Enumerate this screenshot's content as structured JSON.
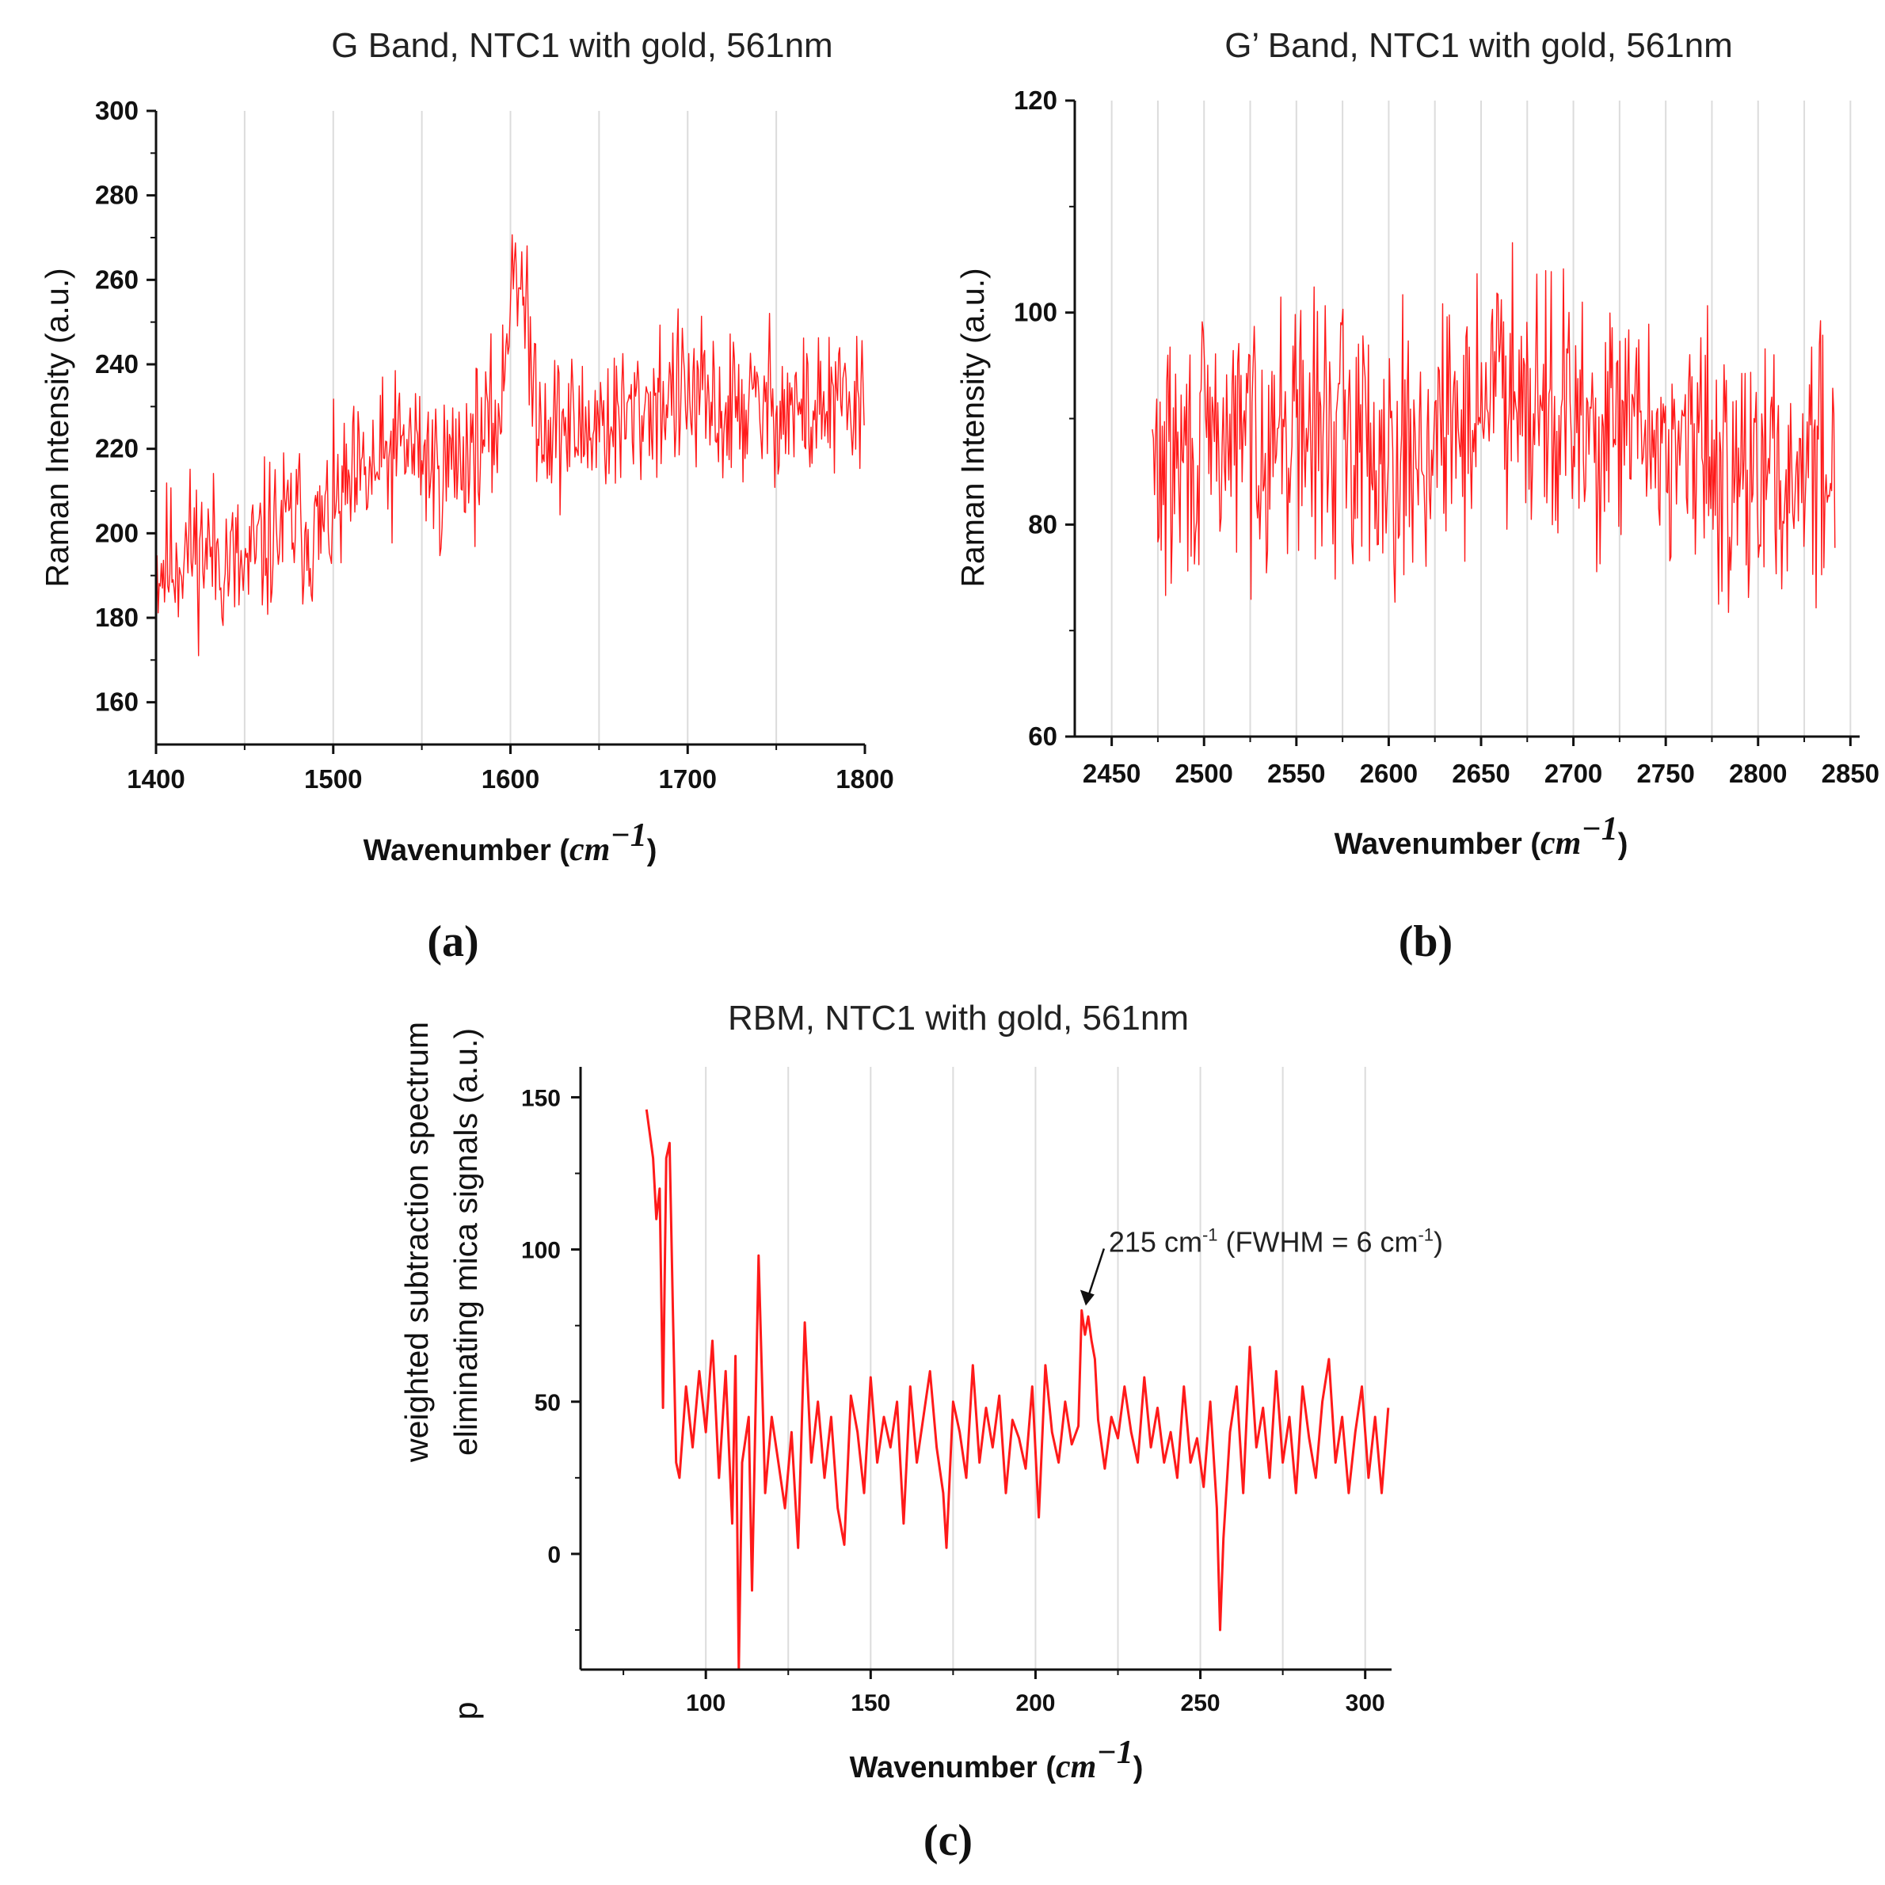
{
  "chart_data": [
    {
      "panel": "(a)",
      "type": "line",
      "title": "G Band, NTC1 with gold, 561nm",
      "ylabel": "Raman Intensity (a.u.)",
      "xlabel": "Wavenumber",
      "xunit": "cm",
      "xunit_exp": "−1",
      "xlim": [
        1400,
        1800
      ],
      "ylim": [
        150,
        300
      ],
      "xticks": [
        1400,
        1500,
        1600,
        1700,
        1800
      ],
      "yticks": [
        160,
        180,
        200,
        220,
        240,
        260,
        280,
        300
      ],
      "color": "#ff1a1a",
      "series": [
        {
          "name": "G Band",
          "x": [
            1400,
            1410,
            1420,
            1430,
            1440,
            1450,
            1460,
            1470,
            1480,
            1490,
            1500,
            1510,
            1520,
            1530,
            1540,
            1550,
            1560,
            1570,
            1580,
            1590,
            1596,
            1600,
            1603,
            1606,
            1610,
            1615,
            1620,
            1630,
            1640,
            1650,
            1660,
            1670,
            1680,
            1690,
            1700,
            1710,
            1720,
            1730,
            1740,
            1750,
            1760,
            1770,
            1780,
            1790,
            1800
          ],
          "values": [
            192,
            194,
            197,
            196,
            194,
            190,
            197,
            201,
            203,
            199,
            205,
            210,
            213,
            217,
            221,
            219,
            214,
            218,
            221,
            224,
            232,
            262,
            268,
            258,
            244,
            232,
            226,
            225,
            224,
            227,
            226,
            228,
            231,
            233,
            232,
            230,
            228,
            230,
            229,
            231,
            229,
            228,
            230,
            229,
            230
          ],
          "noise": 14
        }
      ]
    },
    {
      "panel": "(b)",
      "type": "line",
      "title": "G’ Band, NTC1 with gold, 561nm",
      "ylabel": "Raman Intensity (a.u.)",
      "xlabel": "Wavenumber",
      "xunit": "cm",
      "xunit_exp": "−1",
      "xlim": [
        2430,
        2855
      ],
      "ylim": [
        60,
        120
      ],
      "xticks": [
        2450,
        2500,
        2550,
        2600,
        2650,
        2700,
        2750,
        2800,
        2850
      ],
      "yticks": [
        60,
        80,
        100,
        120
      ],
      "color": "#ff1a1a",
      "series": [
        {
          "name": "G' Band",
          "x": [
            2472,
            2490,
            2510,
            2530,
            2550,
            2570,
            2590,
            2610,
            2630,
            2650,
            2665,
            2680,
            2700,
            2720,
            2740,
            2760,
            2780,
            2800,
            2820,
            2842
          ],
          "values": [
            85,
            86,
            88,
            89,
            89,
            89,
            88,
            87,
            88,
            92,
            95,
            93,
            89,
            88,
            89,
            87,
            86,
            84,
            85,
            87
          ],
          "noise": 9
        }
      ]
    },
    {
      "panel": "(c)",
      "type": "line",
      "title": "RBM, NTC1 with gold, 561nm",
      "ylabel_line1": "weighted subtraction spectrum",
      "ylabel_line2": "eliminating mica signals (a.u.)",
      "ylabel_extra": "p",
      "xlabel": "Wavenumber",
      "xunit": "cm",
      "xunit_exp": "−1",
      "xlim": [
        62,
        308
      ],
      "ylim": [
        -38,
        160
      ],
      "xticks": [
        100,
        150,
        200,
        250,
        300
      ],
      "yticks": [
        0,
        50,
        100,
        150
      ],
      "color": "#ff1a1a",
      "annotation": {
        "text": "215 cm",
        "sup1": "-1",
        "text2": " (FWHM = 6 cm",
        "sup2": "-1",
        "text3": ")",
        "x": 215,
        "y": 80
      },
      "series": [
        {
          "name": "RBM",
          "x": [
            82,
            84,
            85,
            86,
            87,
            88,
            89,
            90,
            91,
            92,
            94,
            96,
            98,
            100,
            102,
            104,
            106,
            108,
            109,
            110,
            111,
            113,
            114,
            116,
            118,
            120,
            122,
            124,
            126,
            128,
            130,
            132,
            134,
            136,
            138,
            140,
            142,
            144,
            146,
            148,
            150,
            152,
            154,
            156,
            158,
            160,
            162,
            164,
            166,
            168,
            170,
            172,
            173,
            175,
            177,
            179,
            181,
            183,
            185,
            187,
            189,
            191,
            193,
            195,
            197,
            199,
            201,
            203,
            205,
            207,
            209,
            211,
            213,
            214,
            215,
            216,
            217,
            218,
            219,
            221,
            223,
            225,
            227,
            229,
            231,
            233,
            235,
            237,
            239,
            241,
            243,
            245,
            247,
            249,
            251,
            253,
            255,
            256,
            257,
            259,
            261,
            263,
            265,
            267,
            269,
            271,
            273,
            275,
            277,
            279,
            281,
            283,
            285,
            287,
            289,
            291,
            293,
            295,
            297,
            299,
            301,
            303,
            305,
            307
          ],
          "values": [
            146,
            130,
            110,
            120,
            48,
            130,
            135,
            80,
            30,
            25,
            55,
            35,
            60,
            40,
            70,
            25,
            60,
            10,
            65,
            -38,
            30,
            45,
            -12,
            98,
            20,
            45,
            30,
            15,
            40,
            2,
            76,
            30,
            50,
            25,
            45,
            15,
            3,
            52,
            40,
            20,
            58,
            30,
            45,
            35,
            50,
            10,
            55,
            30,
            45,
            60,
            35,
            20,
            2,
            50,
            40,
            25,
            62,
            30,
            48,
            35,
            52,
            20,
            44,
            38,
            28,
            55,
            12,
            62,
            40,
            30,
            50,
            36,
            42,
            80,
            72,
            78,
            70,
            64,
            44,
            28,
            45,
            38,
            55,
            40,
            30,
            58,
            35,
            48,
            30,
            40,
            25,
            55,
            30,
            38,
            22,
            50,
            15,
            -25,
            5,
            40,
            55,
            20,
            68,
            35,
            48,
            25,
            60,
            30,
            45,
            20,
            55,
            38,
            25,
            50,
            64,
            30,
            45,
            20,
            40,
            55,
            25,
            45,
            20,
            48
          ]
        }
      ]
    }
  ]
}
